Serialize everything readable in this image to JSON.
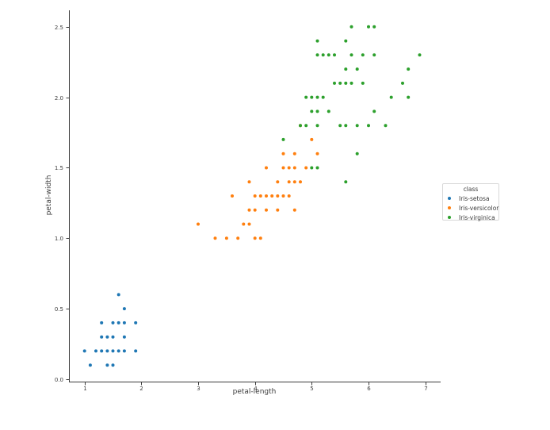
{
  "chart_data": {
    "type": "scatter",
    "title": "",
    "xlabel": "petal-length",
    "ylabel": "petal-width",
    "xlim": [
      0.725,
      7.27
    ],
    "ylim": [
      -0.017,
      2.617
    ],
    "grid": false,
    "xticks": [
      {
        "v": 1,
        "label": "1"
      },
      {
        "v": 2,
        "label": "2"
      },
      {
        "v": 3,
        "label": "3"
      },
      {
        "v": 4,
        "label": "4"
      },
      {
        "v": 5,
        "label": "5"
      },
      {
        "v": 6,
        "label": "6"
      },
      {
        "v": 7,
        "label": "7"
      }
    ],
    "yticks": [
      {
        "v": 0.0,
        "label": "0.0"
      },
      {
        "v": 0.5,
        "label": "0.5"
      },
      {
        "v": 1.0,
        "label": "1.0"
      },
      {
        "v": 1.5,
        "label": "1.5"
      },
      {
        "v": 2.0,
        "label": "2.0"
      },
      {
        "v": 2.5,
        "label": "2.5"
      }
    ],
    "legend": {
      "title": "class",
      "position": "center right"
    },
    "series": [
      {
        "name": "Iris-setosa",
        "color": "#1f77b4",
        "points": [
          [
            1.0,
            0.2
          ],
          [
            1.1,
            0.1
          ],
          [
            1.2,
            0.2
          ],
          [
            1.3,
            0.2
          ],
          [
            1.3,
            0.3
          ],
          [
            1.3,
            0.4
          ],
          [
            1.4,
            0.1
          ],
          [
            1.4,
            0.2
          ],
          [
            1.4,
            0.3
          ],
          [
            1.5,
            0.1
          ],
          [
            1.5,
            0.2
          ],
          [
            1.5,
            0.3
          ],
          [
            1.5,
            0.4
          ],
          [
            1.6,
            0.2
          ],
          [
            1.6,
            0.4
          ],
          [
            1.6,
            0.6
          ],
          [
            1.7,
            0.2
          ],
          [
            1.7,
            0.3
          ],
          [
            1.7,
            0.4
          ],
          [
            1.7,
            0.5
          ],
          [
            1.9,
            0.2
          ],
          [
            1.9,
            0.4
          ]
        ]
      },
      {
        "name": "Iris-versicolor",
        "color": "#ff7f0e",
        "points": [
          [
            3.0,
            1.1
          ],
          [
            3.3,
            1.0
          ],
          [
            3.5,
            1.0
          ],
          [
            3.6,
            1.3
          ],
          [
            3.7,
            1.0
          ],
          [
            3.8,
            1.1
          ],
          [
            3.9,
            1.1
          ],
          [
            3.9,
            1.2
          ],
          [
            3.9,
            1.4
          ],
          [
            4.0,
            1.0
          ],
          [
            4.0,
            1.2
          ],
          [
            4.0,
            1.3
          ],
          [
            4.1,
            1.0
          ],
          [
            4.1,
            1.3
          ],
          [
            4.2,
            1.2
          ],
          [
            4.2,
            1.3
          ],
          [
            4.2,
            1.5
          ],
          [
            4.3,
            1.3
          ],
          [
            4.4,
            1.2
          ],
          [
            4.4,
            1.3
          ],
          [
            4.4,
            1.4
          ],
          [
            4.5,
            1.3
          ],
          [
            4.5,
            1.5
          ],
          [
            4.5,
            1.6
          ],
          [
            4.6,
            1.3
          ],
          [
            4.6,
            1.4
          ],
          [
            4.6,
            1.5
          ],
          [
            4.7,
            1.2
          ],
          [
            4.7,
            1.4
          ],
          [
            4.7,
            1.5
          ],
          [
            4.7,
            1.6
          ],
          [
            4.8,
            1.4
          ],
          [
            4.8,
            1.8
          ],
          [
            4.9,
            1.5
          ],
          [
            5.0,
            1.7
          ],
          [
            5.1,
            1.6
          ]
        ]
      },
      {
        "name": "Iris-virginica",
        "color": "#2ca02c",
        "points": [
          [
            4.5,
            1.7
          ],
          [
            4.8,
            1.8
          ],
          [
            4.9,
            1.8
          ],
          [
            4.9,
            2.0
          ],
          [
            5.0,
            1.5
          ],
          [
            5.0,
            1.9
          ],
          [
            5.0,
            2.0
          ],
          [
            5.1,
            1.5
          ],
          [
            5.1,
            1.8
          ],
          [
            5.1,
            1.9
          ],
          [
            5.1,
            2.0
          ],
          [
            5.1,
            2.3
          ],
          [
            5.1,
            2.4
          ],
          [
            5.2,
            2.0
          ],
          [
            5.2,
            2.3
          ],
          [
            5.3,
            1.9
          ],
          [
            5.3,
            2.3
          ],
          [
            5.4,
            2.1
          ],
          [
            5.4,
            2.3
          ],
          [
            5.5,
            1.8
          ],
          [
            5.5,
            2.1
          ],
          [
            5.6,
            1.4
          ],
          [
            5.6,
            1.8
          ],
          [
            5.6,
            2.1
          ],
          [
            5.6,
            2.2
          ],
          [
            5.6,
            2.4
          ],
          [
            5.7,
            2.1
          ],
          [
            5.7,
            2.3
          ],
          [
            5.7,
            2.5
          ],
          [
            5.8,
            1.6
          ],
          [
            5.8,
            1.8
          ],
          [
            5.8,
            2.2
          ],
          [
            5.9,
            2.1
          ],
          [
            5.9,
            2.3
          ],
          [
            6.0,
            1.8
          ],
          [
            6.0,
            2.5
          ],
          [
            6.1,
            1.9
          ],
          [
            6.1,
            2.3
          ],
          [
            6.1,
            2.5
          ],
          [
            6.3,
            1.8
          ],
          [
            6.4,
            2.0
          ],
          [
            6.6,
            2.1
          ],
          [
            6.7,
            2.0
          ],
          [
            6.7,
            2.2
          ],
          [
            6.9,
            2.3
          ]
        ]
      }
    ],
    "style": {
      "text_color": "#3b3b3b",
      "spine_color": "#3b3b3b",
      "background": "#ffffff",
      "legend_border": "#d8d8d8"
    }
  }
}
